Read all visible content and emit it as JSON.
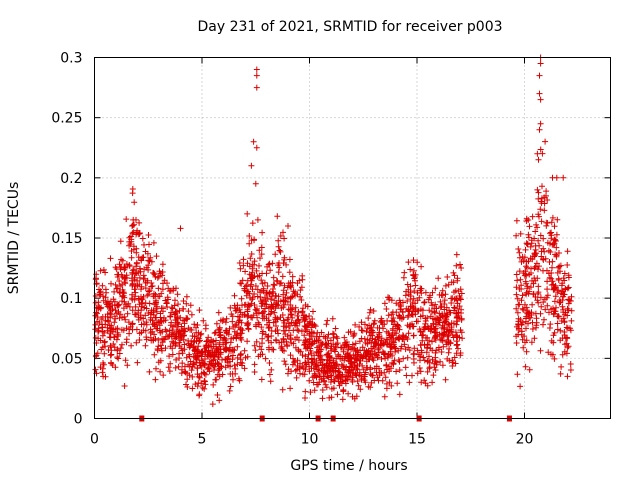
{
  "chart_data": {
    "type": "scatter",
    "title": "Day 231 of 2021, SRMTID for receiver p003",
    "xlabel": "GPS time / hours",
    "ylabel": "SRMTID / TECUs",
    "xlim": [
      0,
      24
    ],
    "ylim": [
      0,
      0.3
    ],
    "xticks": [
      0,
      5,
      10,
      15,
      20
    ],
    "yticks": [
      0,
      0.05,
      0.1,
      0.15,
      0.2,
      0.25,
      0.3
    ],
    "xtick_labels": [
      "0",
      "5",
      "10",
      "15",
      "20"
    ],
    "ytick_labels": [
      "0",
      "0.05",
      "0.1",
      "0.15",
      "0.2",
      "0.25",
      "0.3"
    ],
    "grid": true,
    "marker": "+",
    "color": "#dd0000",
    "gap_markers_x": [
      2.2,
      7.8,
      10.4,
      11.1,
      15.1,
      19.3
    ],
    "series": [
      {
        "name": "SRMTID",
        "segments": [
          {
            "x_start": 0.0,
            "x_end": 17.1
          },
          {
            "x_start": 19.6,
            "x_end": 22.2
          }
        ],
        "trend": [
          [
            0.0,
            0.095
          ],
          [
            0.5,
            0.075
          ],
          [
            1.0,
            0.085
          ],
          [
            1.5,
            0.105
          ],
          [
            1.8,
            0.12
          ],
          [
            2.0,
            0.11
          ],
          [
            2.5,
            0.1
          ],
          [
            3.0,
            0.085
          ],
          [
            3.5,
            0.075
          ],
          [
            4.0,
            0.07
          ],
          [
            4.5,
            0.06
          ],
          [
            5.0,
            0.05
          ],
          [
            5.5,
            0.048
          ],
          [
            6.0,
            0.055
          ],
          [
            6.5,
            0.065
          ],
          [
            7.0,
            0.085
          ],
          [
            7.3,
            0.11
          ],
          [
            7.6,
            0.095
          ],
          [
            8.0,
            0.085
          ],
          [
            8.5,
            0.095
          ],
          [
            9.0,
            0.09
          ],
          [
            9.5,
            0.075
          ],
          [
            10.0,
            0.06
          ],
          [
            10.5,
            0.048
          ],
          [
            11.0,
            0.05
          ],
          [
            11.5,
            0.042
          ],
          [
            12.0,
            0.045
          ],
          [
            12.5,
            0.055
          ],
          [
            13.0,
            0.06
          ],
          [
            13.5,
            0.06
          ],
          [
            14.0,
            0.065
          ],
          [
            14.5,
            0.08
          ],
          [
            15.0,
            0.085
          ],
          [
            15.5,
            0.07
          ],
          [
            16.0,
            0.075
          ],
          [
            16.5,
            0.075
          ],
          [
            17.0,
            0.085
          ],
          [
            19.6,
            0.1
          ],
          [
            20.0,
            0.105
          ],
          [
            20.5,
            0.12
          ],
          [
            20.8,
            0.14
          ],
          [
            21.0,
            0.13
          ],
          [
            21.5,
            0.105
          ],
          [
            22.0,
            0.08
          ],
          [
            22.2,
            0.07
          ]
        ],
        "peaks": [
          {
            "x": 7.55,
            "y": 0.29
          },
          {
            "x": 7.55,
            "y": 0.285
          },
          {
            "x": 7.55,
            "y": 0.275
          },
          {
            "x": 7.4,
            "y": 0.23
          },
          {
            "x": 7.55,
            "y": 0.225
          },
          {
            "x": 7.3,
            "y": 0.21
          },
          {
            "x": 7.5,
            "y": 0.195
          },
          {
            "x": 7.1,
            "y": 0.17
          },
          {
            "x": 7.6,
            "y": 0.165
          },
          {
            "x": 20.75,
            "y": 0.3
          },
          {
            "x": 20.75,
            "y": 0.295
          },
          {
            "x": 20.7,
            "y": 0.285
          },
          {
            "x": 20.7,
            "y": 0.27
          },
          {
            "x": 20.75,
            "y": 0.265
          },
          {
            "x": 20.75,
            "y": 0.245
          },
          {
            "x": 20.7,
            "y": 0.24
          },
          {
            "x": 20.6,
            "y": 0.22
          },
          {
            "x": 20.65,
            "y": 0.215
          },
          {
            "x": 21.3,
            "y": 0.2
          },
          {
            "x": 21.5,
            "y": 0.2
          },
          {
            "x": 21.8,
            "y": 0.2
          },
          {
            "x": 20.6,
            "y": 0.19
          },
          {
            "x": 21.0,
            "y": 0.185
          },
          {
            "x": 1.8,
            "y": 0.165
          },
          {
            "x": 1.75,
            "y": 0.16
          },
          {
            "x": 4.0,
            "y": 0.158
          },
          {
            "x": 8.5,
            "y": 0.168
          },
          {
            "x": 9.0,
            "y": 0.16
          },
          {
            "x": 14.6,
            "y": 0.13
          },
          {
            "x": 17.0,
            "y": 0.128
          }
        ],
        "lows": [
          {
            "x": 0.4,
            "y": 0.035
          },
          {
            "x": 1.4,
            "y": 0.027
          },
          {
            "x": 5.5,
            "y": 0.012
          },
          {
            "x": 5.8,
            "y": 0.015
          },
          {
            "x": 9.1,
            "y": 0.025
          },
          {
            "x": 11.3,
            "y": 0.02
          },
          {
            "x": 12.0,
            "y": 0.018
          },
          {
            "x": 13.5,
            "y": 0.018
          },
          {
            "x": 14.2,
            "y": 0.02
          },
          {
            "x": 15.7,
            "y": 0.03
          },
          {
            "x": 20.1,
            "y": 0.065
          },
          {
            "x": 21.1,
            "y": 0.055
          },
          {
            "x": 22.0,
            "y": 0.035
          }
        ]
      }
    ]
  }
}
